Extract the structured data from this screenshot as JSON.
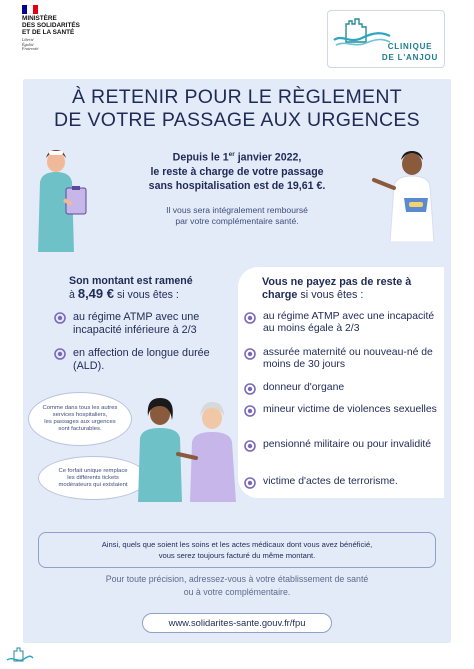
{
  "header": {
    "ministry_name": "MINISTÈRE\nDES SOLIDARITÉS\nET DE LA SANTÉ",
    "motto": "Liberté\nÉgalité\nFraternité",
    "clinic_name": "CLINIQUE\nDE L'ANJOU",
    "flag_colors": [
      "#000091",
      "#ffffff",
      "#e1000f"
    ]
  },
  "title": "À RETENIR POUR LE RÈGLEMENT\nDE VOTRE PASSAGE AUX URGENCES",
  "intro": {
    "line1_a": "Depuis le 1",
    "line1_sup": "er",
    "line1_b": " janvier 2022,",
    "line2": "le reste à charge de votre passage",
    "line3": "sans hospitalisation est de 19,61 €.",
    "sub": "Il vous sera intégralement remboursé\npar votre complémentaire santé."
  },
  "left": {
    "amount_a": "Son montant est ramené",
    "amount_b": "à ",
    "amount_value": "8,49 €",
    "amount_c": " si vous êtes :",
    "items": [
      "au régime ATMP avec une incapacité inférieure à 2/3",
      "en affection de longue durée (ALD)."
    ]
  },
  "right": {
    "title_a": "Vous ne payez pas de reste à charge",
    "title_b": " si vous êtes :",
    "items": [
      "au régime ATMP avec une incapacité au moins égale à 2/3",
      "assurée maternité ou nouveau-né de moins de 30 jours",
      "donneur d'organe",
      "mineur victime de violences sexuelles",
      "pensionné militaire ou pour invalidité",
      "victime d'actes de terrorisme."
    ]
  },
  "bubbles": [
    "Comme dans tous les autres\nservices hospitaliers,\nles passages aux urgences\nsont facturables.",
    "Ce forfait unique remplace\nles différents tickets\nmodérateurs qui existaient"
  ],
  "note": "Ainsi, quels que soient les soins et les actes médicaux dont vous avez bénéficié,\nvous serez toujours facturé du même montant.",
  "contact": "Pour toute précision, adressez-vous à votre établissement de santé\nou à votre complémentaire.",
  "url": "www.solidarites-sante.gouv.fr/fpu",
  "colors": {
    "navy": "#1f2a55",
    "poster_bg": "#e3eaf8",
    "bullet_purple": "#7b69b8",
    "clinic_teal": "#1a7f8e"
  }
}
